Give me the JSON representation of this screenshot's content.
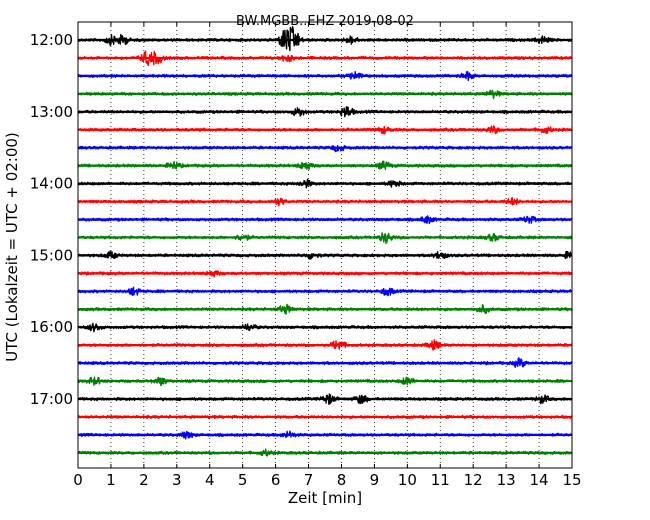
{
  "chart_data": {
    "type": "line",
    "title": "BW.MGBB..EHZ 2019-08-02",
    "xlabel": "Zeit  [min]",
    "ylabel": "UTC (Lokalzeit = UTC + 02:00)",
    "xlim": [
      0,
      15
    ],
    "x_ticks": [
      "0",
      "1",
      "2",
      "3",
      "4",
      "5",
      "6",
      "7",
      "8",
      "9",
      "10",
      "11",
      "12",
      "13",
      "14",
      "15"
    ],
    "y_ticks": [
      "12:00",
      "13:00",
      "14:00",
      "15:00",
      "16:00",
      "17:00"
    ],
    "grid": "vertical dotted at every minute",
    "traces": [
      {
        "start": "12:00",
        "color": "#000000",
        "events": [
          {
            "t": 1.0,
            "a": 0.4
          },
          {
            "t": 1.35,
            "a": 0.45
          },
          {
            "t": 6.3,
            "a": 1.0
          },
          {
            "t": 6.55,
            "a": 1.0
          },
          {
            "t": 8.3,
            "a": 0.35
          },
          {
            "t": 14.1,
            "a": 0.35
          }
        ]
      },
      {
        "start": "12:15",
        "color": "#ff0000",
        "events": [
          {
            "t": 2.1,
            "a": 0.6
          },
          {
            "t": 2.4,
            "a": 0.5
          },
          {
            "t": 6.35,
            "a": 0.3
          }
        ]
      },
      {
        "start": "12:30",
        "color": "#0000ff",
        "events": [
          {
            "t": 8.4,
            "a": 0.35
          },
          {
            "t": 11.8,
            "a": 0.35
          }
        ]
      },
      {
        "start": "12:45",
        "color": "#008000",
        "events": [
          {
            "t": 12.6,
            "a": 0.35
          }
        ]
      },
      {
        "start": "13:00",
        "color": "#000000",
        "events": [
          {
            "t": 6.7,
            "a": 0.4
          },
          {
            "t": 8.15,
            "a": 0.55
          }
        ]
      },
      {
        "start": "13:15",
        "color": "#ff0000",
        "events": [
          {
            "t": 9.3,
            "a": 0.3
          },
          {
            "t": 12.6,
            "a": 0.3
          },
          {
            "t": 14.2,
            "a": 0.3
          }
        ]
      },
      {
        "start": "13:30",
        "color": "#0000ff",
        "events": [
          {
            "t": 7.9,
            "a": 0.3
          }
        ]
      },
      {
        "start": "13:45",
        "color": "#008000",
        "events": [
          {
            "t": 2.9,
            "a": 0.35
          },
          {
            "t": 6.9,
            "a": 0.4
          },
          {
            "t": 9.3,
            "a": 0.35
          }
        ]
      },
      {
        "start": "14:00",
        "color": "#000000",
        "events": [
          {
            "t": 6.9,
            "a": 0.35
          },
          {
            "t": 9.6,
            "a": 0.3
          }
        ]
      },
      {
        "start": "14:15",
        "color": "#ff0000",
        "events": [
          {
            "t": 6.1,
            "a": 0.3
          },
          {
            "t": 13.2,
            "a": 0.3
          }
        ]
      },
      {
        "start": "14:30",
        "color": "#0000ff",
        "events": [
          {
            "t": 10.6,
            "a": 0.3
          },
          {
            "t": 13.7,
            "a": 0.3
          }
        ]
      },
      {
        "start": "14:45",
        "color": "#008000",
        "events": [
          {
            "t": 5.0,
            "a": 0.3
          },
          {
            "t": 9.35,
            "a": 0.5
          },
          {
            "t": 12.6,
            "a": 0.3
          }
        ]
      },
      {
        "start": "15:00",
        "color": "#000000",
        "events": [
          {
            "t": 1.0,
            "a": 0.3
          },
          {
            "t": 7.1,
            "a": 0.3
          },
          {
            "t": 11.0,
            "a": 0.35
          },
          {
            "t": 14.95,
            "a": 0.4
          }
        ]
      },
      {
        "start": "15:15",
        "color": "#ff0000",
        "events": [
          {
            "t": 4.1,
            "a": 0.25
          }
        ]
      },
      {
        "start": "15:30",
        "color": "#0000ff",
        "events": [
          {
            "t": 1.7,
            "a": 0.35
          },
          {
            "t": 9.4,
            "a": 0.35
          }
        ]
      },
      {
        "start": "15:45",
        "color": "#008000",
        "events": [
          {
            "t": 6.3,
            "a": 0.4
          },
          {
            "t": 12.3,
            "a": 0.35
          }
        ]
      },
      {
        "start": "16:00",
        "color": "#000000",
        "events": [
          {
            "t": 0.5,
            "a": 0.35
          },
          {
            "t": 5.2,
            "a": 0.3
          }
        ]
      },
      {
        "start": "16:15",
        "color": "#ff0000",
        "events": [
          {
            "t": 7.9,
            "a": 0.5
          },
          {
            "t": 10.8,
            "a": 0.4
          }
        ]
      },
      {
        "start": "16:30",
        "color": "#0000ff",
        "events": [
          {
            "t": 13.4,
            "a": 0.4
          }
        ]
      },
      {
        "start": "16:45",
        "color": "#008000",
        "events": [
          {
            "t": 0.5,
            "a": 0.35
          },
          {
            "t": 2.5,
            "a": 0.35
          },
          {
            "t": 10.0,
            "a": 0.35
          }
        ]
      },
      {
        "start": "17:00",
        "color": "#000000",
        "events": [
          {
            "t": 7.6,
            "a": 0.45
          },
          {
            "t": 8.6,
            "a": 0.4
          },
          {
            "t": 14.1,
            "a": 0.35
          }
        ]
      },
      {
        "start": "17:15",
        "color": "#ff0000",
        "events": []
      },
      {
        "start": "17:30",
        "color": "#0000ff",
        "events": [
          {
            "t": 3.3,
            "a": 0.3
          },
          {
            "t": 6.4,
            "a": 0.3
          }
        ]
      },
      {
        "start": "17:45",
        "color": "#008000",
        "events": [
          {
            "t": 5.7,
            "a": 0.25
          }
        ]
      }
    ]
  }
}
